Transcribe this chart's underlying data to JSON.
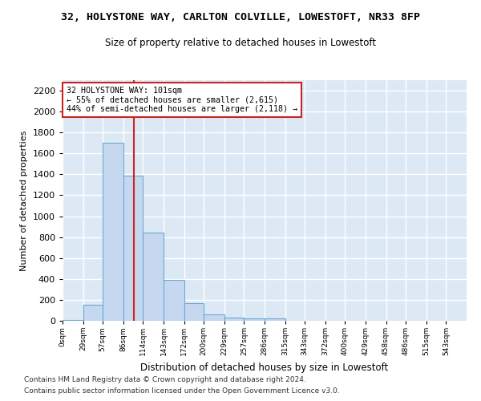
{
  "title": "32, HOLYSTONE WAY, CARLTON COLVILLE, LOWESTOFT, NR33 8FP",
  "subtitle": "Size of property relative to detached houses in Lowestoft",
  "xlabel": "Distribution of detached houses by size in Lowestoft",
  "ylabel": "Number of detached properties",
  "bar_color": "#c5d8f0",
  "bar_edge_color": "#6aaad4",
  "background_color": "#dde8f5",
  "grid_color": "#ffffff",
  "annotation_line1": "32 HOLYSTONE WAY: 101sqm",
  "annotation_line2": "← 55% of detached houses are smaller (2,615)",
  "annotation_line3": "44% of semi-detached houses are larger (2,118) →",
  "annotation_box_color": "#ffffff",
  "annotation_border_color": "#cc2222",
  "property_line_x": 101,
  "property_line_color": "#cc2222",
  "bins": [
    0,
    29,
    57,
    86,
    114,
    143,
    172,
    200,
    229,
    257,
    286,
    315,
    343,
    372,
    400,
    429,
    458,
    486,
    515,
    543,
    572
  ],
  "bar_heights": [
    10,
    150,
    1700,
    1390,
    840,
    390,
    165,
    65,
    28,
    25,
    25,
    0,
    0,
    0,
    0,
    0,
    0,
    0,
    0,
    0
  ],
  "ylim": [
    0,
    2300
  ],
  "yticks": [
    0,
    200,
    400,
    600,
    800,
    1000,
    1200,
    1400,
    1600,
    1800,
    2000,
    2200
  ],
  "footnote1": "Contains HM Land Registry data © Crown copyright and database right 2024.",
  "footnote2": "Contains public sector information licensed under the Open Government Licence v3.0.",
  "figsize": [
    6.0,
    5.0
  ],
  "dpi": 100
}
